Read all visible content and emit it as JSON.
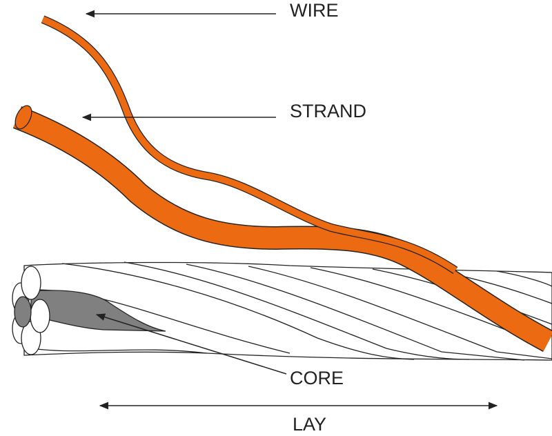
{
  "labels": {
    "wire": "WIRE",
    "strand": "STRAND",
    "core": "CORE",
    "lay": "LAY"
  },
  "colors": {
    "strand": "#ec6a12",
    "core": "#808080",
    "outline": "#222222"
  }
}
